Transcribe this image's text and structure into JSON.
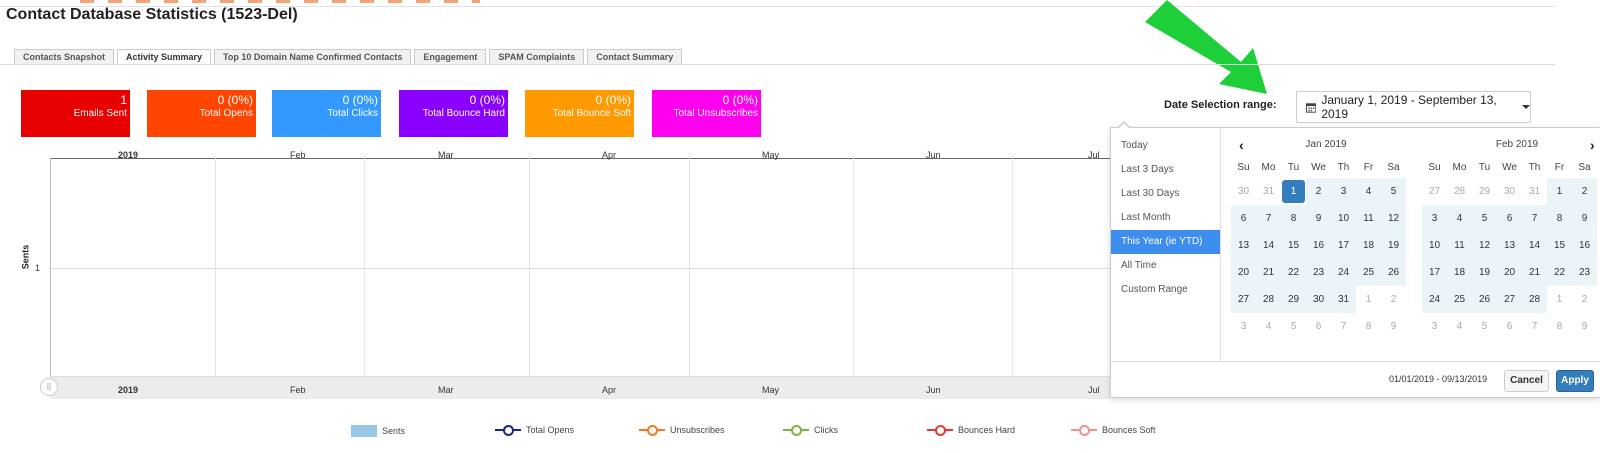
{
  "page": {
    "title": "Contact Database Statistics (1523-Del)"
  },
  "tabs": [
    {
      "label": "Contacts Snapshot",
      "active": false
    },
    {
      "label": "Activity Summary",
      "active": true
    },
    {
      "label": "Top 10 Domain Name Confirmed Contacts",
      "active": false
    },
    {
      "label": "Engagement",
      "active": false
    },
    {
      "label": "SPAM Complaints",
      "active": false
    },
    {
      "label": "Contact Summary",
      "active": false
    }
  ],
  "stats": [
    {
      "value": "1",
      "label": "Emails Sent",
      "color": "#e60000"
    },
    {
      "value": "0 (0%)",
      "label": "Total Opens",
      "color": "#ff4500"
    },
    {
      "value": "0 (0%)",
      "label": "Total Clicks",
      "color": "#3399ff"
    },
    {
      "value": "0 (0%)",
      "label": "Total Bounce Hard",
      "color": "#8a00ff"
    },
    {
      "value": "0 (0%)",
      "label": "Total Bounce Soft",
      "color": "#ff9900"
    },
    {
      "value": "0 (0%)",
      "label": "Total Unsubscribes",
      "color": "#ff00ee"
    }
  ],
  "date_selection": {
    "label": "Date Selection range:",
    "value": "January 1, 2019 - September 13, 2019",
    "icon": "calendar-icon"
  },
  "chart_data": {
    "type": "area",
    "ylabel": "Sents",
    "x": [
      "2019",
      "Feb",
      "Mar",
      "Apr",
      "May",
      "Jun",
      "Jul"
    ],
    "y_ticks": [
      "1"
    ],
    "series": [
      {
        "name": "Sents",
        "color": "#98c7e6"
      },
      {
        "name": "Total Opens",
        "color": "#1a237e"
      },
      {
        "name": "Unsubscribes",
        "color": "#f47a20"
      },
      {
        "name": "Clicks",
        "color": "#7cb342"
      },
      {
        "name": "Bounces Hard",
        "color": "#e53935"
      },
      {
        "name": "Bounces Soft",
        "color": "#f48f8f"
      }
    ],
    "grid": true,
    "legend": "bottom"
  },
  "picker": {
    "ranges": [
      {
        "label": "Today",
        "active": false
      },
      {
        "label": "Last 3 Days",
        "active": false
      },
      {
        "label": "Last 30 Days",
        "active": false
      },
      {
        "label": "Last Month",
        "active": false
      },
      {
        "label": "This Year (ie YTD)",
        "active": true
      },
      {
        "label": "All Time",
        "active": false
      },
      {
        "label": "Custom Range",
        "active": false
      }
    ],
    "weekdays": [
      "Su",
      "Mo",
      "Tu",
      "We",
      "Th",
      "Fr",
      "Sa"
    ],
    "left": {
      "title": "Jan 2019",
      "days": [
        [
          "30",
          "off"
        ],
        [
          "31",
          "off"
        ],
        [
          "1",
          "start"
        ],
        [
          "2",
          "in"
        ],
        [
          "3",
          "in"
        ],
        [
          "4",
          "in"
        ],
        [
          "5",
          "in"
        ],
        [
          "6",
          "in"
        ],
        [
          "7",
          "in"
        ],
        [
          "8",
          "in"
        ],
        [
          "9",
          "in"
        ],
        [
          "10",
          "in"
        ],
        [
          "11",
          "in"
        ],
        [
          "12",
          "in"
        ],
        [
          "13",
          "in"
        ],
        [
          "14",
          "in"
        ],
        [
          "15",
          "in"
        ],
        [
          "16",
          "in"
        ],
        [
          "17",
          "in"
        ],
        [
          "18",
          "in"
        ],
        [
          "19",
          "in"
        ],
        [
          "20",
          "in"
        ],
        [
          "21",
          "in"
        ],
        [
          "22",
          "in"
        ],
        [
          "23",
          "in"
        ],
        [
          "24",
          "in"
        ],
        [
          "25",
          "in"
        ],
        [
          "26",
          "in"
        ],
        [
          "27",
          "in"
        ],
        [
          "28",
          "in"
        ],
        [
          "29",
          "in"
        ],
        [
          "30",
          "in"
        ],
        [
          "31",
          "in"
        ],
        [
          "1",
          "off"
        ],
        [
          "2",
          "off"
        ],
        [
          "3",
          "off"
        ],
        [
          "4",
          "off"
        ],
        [
          "5",
          "off"
        ],
        [
          "6",
          "off"
        ],
        [
          "7",
          "off"
        ],
        [
          "8",
          "off"
        ],
        [
          "9",
          "off"
        ]
      ]
    },
    "right": {
      "title": "Feb 2019",
      "days": [
        [
          "27",
          "off"
        ],
        [
          "28",
          "off"
        ],
        [
          "29",
          "off"
        ],
        [
          "30",
          "off"
        ],
        [
          "31",
          "off"
        ],
        [
          "1",
          "in"
        ],
        [
          "2",
          "in"
        ],
        [
          "3",
          "in"
        ],
        [
          "4",
          "in"
        ],
        [
          "5",
          "in"
        ],
        [
          "6",
          "in"
        ],
        [
          "7",
          "in"
        ],
        [
          "8",
          "in"
        ],
        [
          "9",
          "in"
        ],
        [
          "10",
          "in"
        ],
        [
          "11",
          "in"
        ],
        [
          "12",
          "in"
        ],
        [
          "13",
          "in"
        ],
        [
          "14",
          "in"
        ],
        [
          "15",
          "in"
        ],
        [
          "16",
          "in"
        ],
        [
          "17",
          "in"
        ],
        [
          "18",
          "in"
        ],
        [
          "19",
          "in"
        ],
        [
          "20",
          "in"
        ],
        [
          "21",
          "in"
        ],
        [
          "22",
          "in"
        ],
        [
          "23",
          "in"
        ],
        [
          "24",
          "in"
        ],
        [
          "25",
          "in"
        ],
        [
          "26",
          "in"
        ],
        [
          "27",
          "in"
        ],
        [
          "28",
          "in"
        ],
        [
          "1",
          "off"
        ],
        [
          "2",
          "off"
        ],
        [
          "3",
          "off"
        ],
        [
          "4",
          "off"
        ],
        [
          "5",
          "off"
        ],
        [
          "6",
          "off"
        ],
        [
          "7",
          "off"
        ],
        [
          "8",
          "off"
        ],
        [
          "9",
          "off"
        ]
      ]
    },
    "selected_text": "01/01/2019 - 09/13/2019",
    "cancel_label": "Cancel",
    "apply_label": "Apply"
  }
}
